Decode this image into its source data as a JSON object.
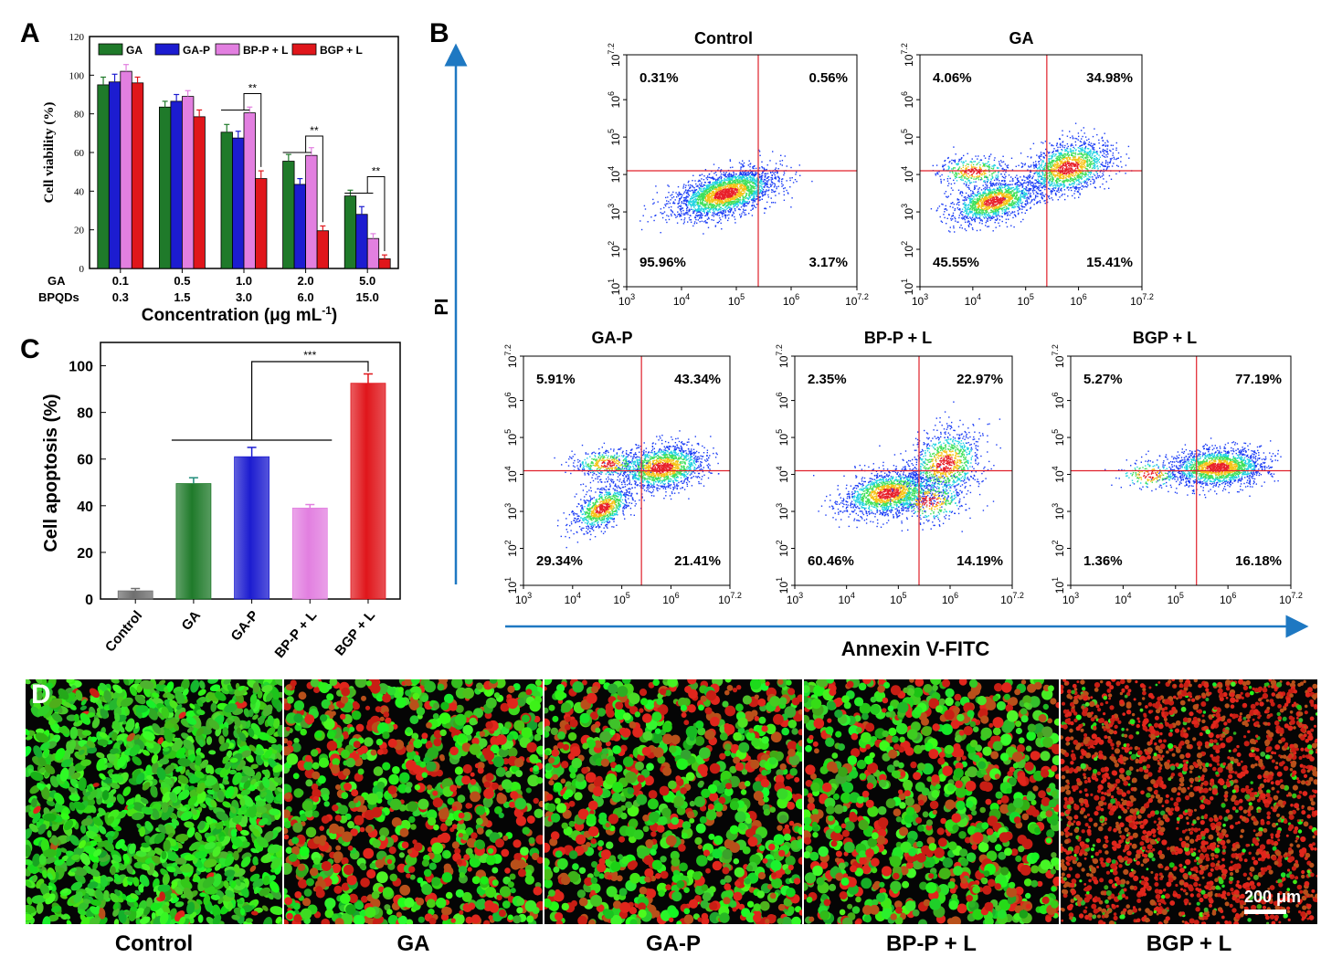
{
  "panel_letters": {
    "a": "A",
    "b": "B",
    "c": "C",
    "d": "D"
  },
  "colors": {
    "GA": "#1f7a2a",
    "GA-P": "#1c1cd0",
    "BP-P + L": "#e27fe0",
    "BGP + L": "#e0161b",
    "Control": "#6f6f6f",
    "axis_arrow": "#1e78c2",
    "gate": "#e0202a"
  },
  "chart_data": [
    {
      "id": "A",
      "type": "bar",
      "ylabel": "Cell viability (%)",
      "xlabel": "Concentration (μg mL",
      "xlabel_sup": "-1",
      "xlabel_end": ")",
      "ylim": [
        0,
        120
      ],
      "yticks": [
        0,
        20,
        40,
        60,
        80,
        100,
        120
      ],
      "row_labels": [
        "GA",
        "BPQDs"
      ],
      "categories_GA": [
        "0.1",
        "0.5",
        "1.0",
        "2.0",
        "5.0"
      ],
      "categories_BPQDs": [
        "0.3",
        "1.5",
        "3.0",
        "6.0",
        "15.0"
      ],
      "legend_position": "top",
      "series": [
        {
          "name": "GA",
          "values": [
            95,
            83.5,
            70.5,
            55.5,
            37.5
          ],
          "errors": [
            4,
            3,
            4,
            3.5,
            3
          ]
        },
        {
          "name": "GA-P",
          "values": [
            96.5,
            86.5,
            67.5,
            43.5,
            28
          ],
          "errors": [
            4,
            3.5,
            3.5,
            3,
            4
          ]
        },
        {
          "name": "BP-P + L",
          "values": [
            102,
            89,
            80.5,
            58.5,
            15.5
          ],
          "errors": [
            3.5,
            3,
            3,
            4,
            2.5
          ]
        },
        {
          "name": "BGP + L",
          "values": [
            96,
            78.5,
            46.5,
            19.5,
            5
          ],
          "errors": [
            3,
            3.5,
            4,
            2.5,
            2
          ]
        }
      ],
      "annotations": [
        "**",
        "**",
        "**"
      ]
    },
    {
      "id": "C",
      "type": "bar",
      "ylabel": "Cell apoptosis (%)",
      "ylim": [
        0,
        110
      ],
      "yticks": [
        0,
        20,
        40,
        60,
        80,
        100
      ],
      "categories": [
        "Control",
        "GA",
        "GA-P",
        "BP-P + L",
        "BGP + L"
      ],
      "values": [
        3.5,
        49.5,
        61,
        39,
        92.5
      ],
      "errors": [
        1,
        2.5,
        4,
        1.5,
        4
      ],
      "annotations": [
        "***"
      ]
    },
    {
      "id": "B",
      "type": "scatter",
      "xlabel": "Annexin V-FITC",
      "ylabel": "PI",
      "xticks": [
        "10",
        "10",
        "10",
        "10",
        "10"
      ],
      "xtick_exp": [
        "3",
        "4",
        "5",
        "6",
        "7.2"
      ],
      "yticks": [
        "10",
        "10",
        "10",
        "10",
        "10",
        "10",
        "10"
      ],
      "ytick_exp": [
        "1",
        "2",
        "3",
        "4",
        "5",
        "6",
        "7.2"
      ],
      "plots": [
        {
          "title": "Control",
          "UL": "0.31%",
          "UR": "0.56%",
          "LL": "95.96%",
          "LR": "3.17%"
        },
        {
          "title": "GA",
          "UL": "4.06%",
          "UR": "34.98%",
          "LL": "45.55%",
          "LR": "15.41%"
        },
        {
          "title": "GA-P",
          "UL": "5.91%",
          "UR": "43.34%",
          "LL": "29.34%",
          "LR": "21.41%"
        },
        {
          "title": "BP-P + L",
          "UL": "2.35%",
          "UR": "22.97%",
          "LL": "60.46%",
          "LR": "14.19%"
        },
        {
          "title": "BGP + L",
          "UL": "5.27%",
          "UR": "77.19%",
          "LL": "1.36%",
          "LR": "16.18%"
        }
      ]
    }
  ],
  "panel_d": {
    "labels": [
      "Control",
      "GA",
      "GA-P",
      "BP-P + L",
      "BGP + L"
    ],
    "red_fraction": [
      0.02,
      0.45,
      0.45,
      0.4,
      0.9
    ],
    "scale_bar": "200 μm"
  }
}
